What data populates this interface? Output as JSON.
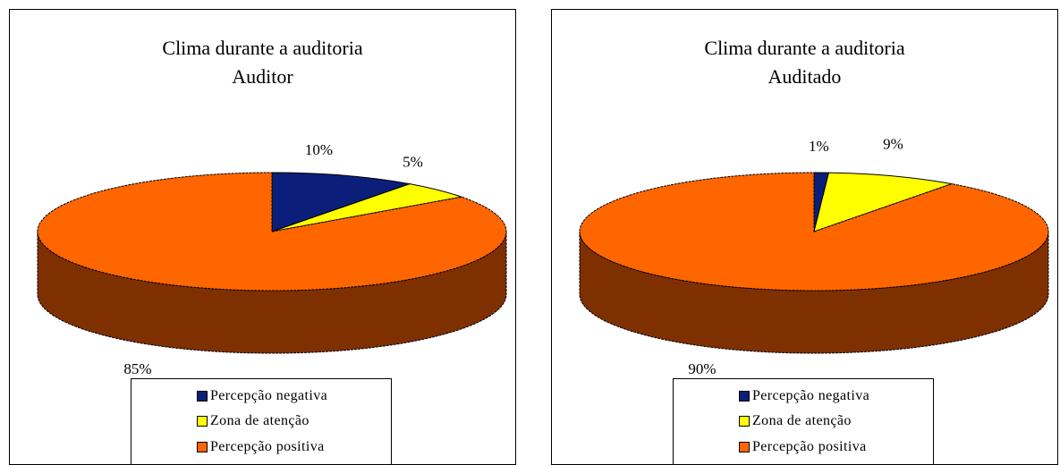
{
  "colors": {
    "negativa": "#0b1f7a",
    "atencao": "#ffff00",
    "positiva": "#ff6600",
    "side": "#7f3000"
  },
  "chart_data": [
    {
      "type": "pie",
      "title": "Clima durante a auditoria",
      "subtitle": "Auditor",
      "categories": [
        "Percepção negativa",
        "Zona de atenção",
        "Percepção positiva"
      ],
      "values": [
        10,
        5,
        85
      ],
      "data_labels": [
        "10%",
        "5%",
        "85%"
      ],
      "legend": "bottom"
    },
    {
      "type": "pie",
      "title": "Clima durante a auditoria",
      "subtitle": "Auditado",
      "categories": [
        "Percepção negativa",
        "Zona de atenção",
        "Percepção positiva"
      ],
      "values": [
        1,
        9,
        90
      ],
      "data_labels": [
        "1%",
        "9%",
        "90%"
      ],
      "legend": "bottom"
    }
  ]
}
